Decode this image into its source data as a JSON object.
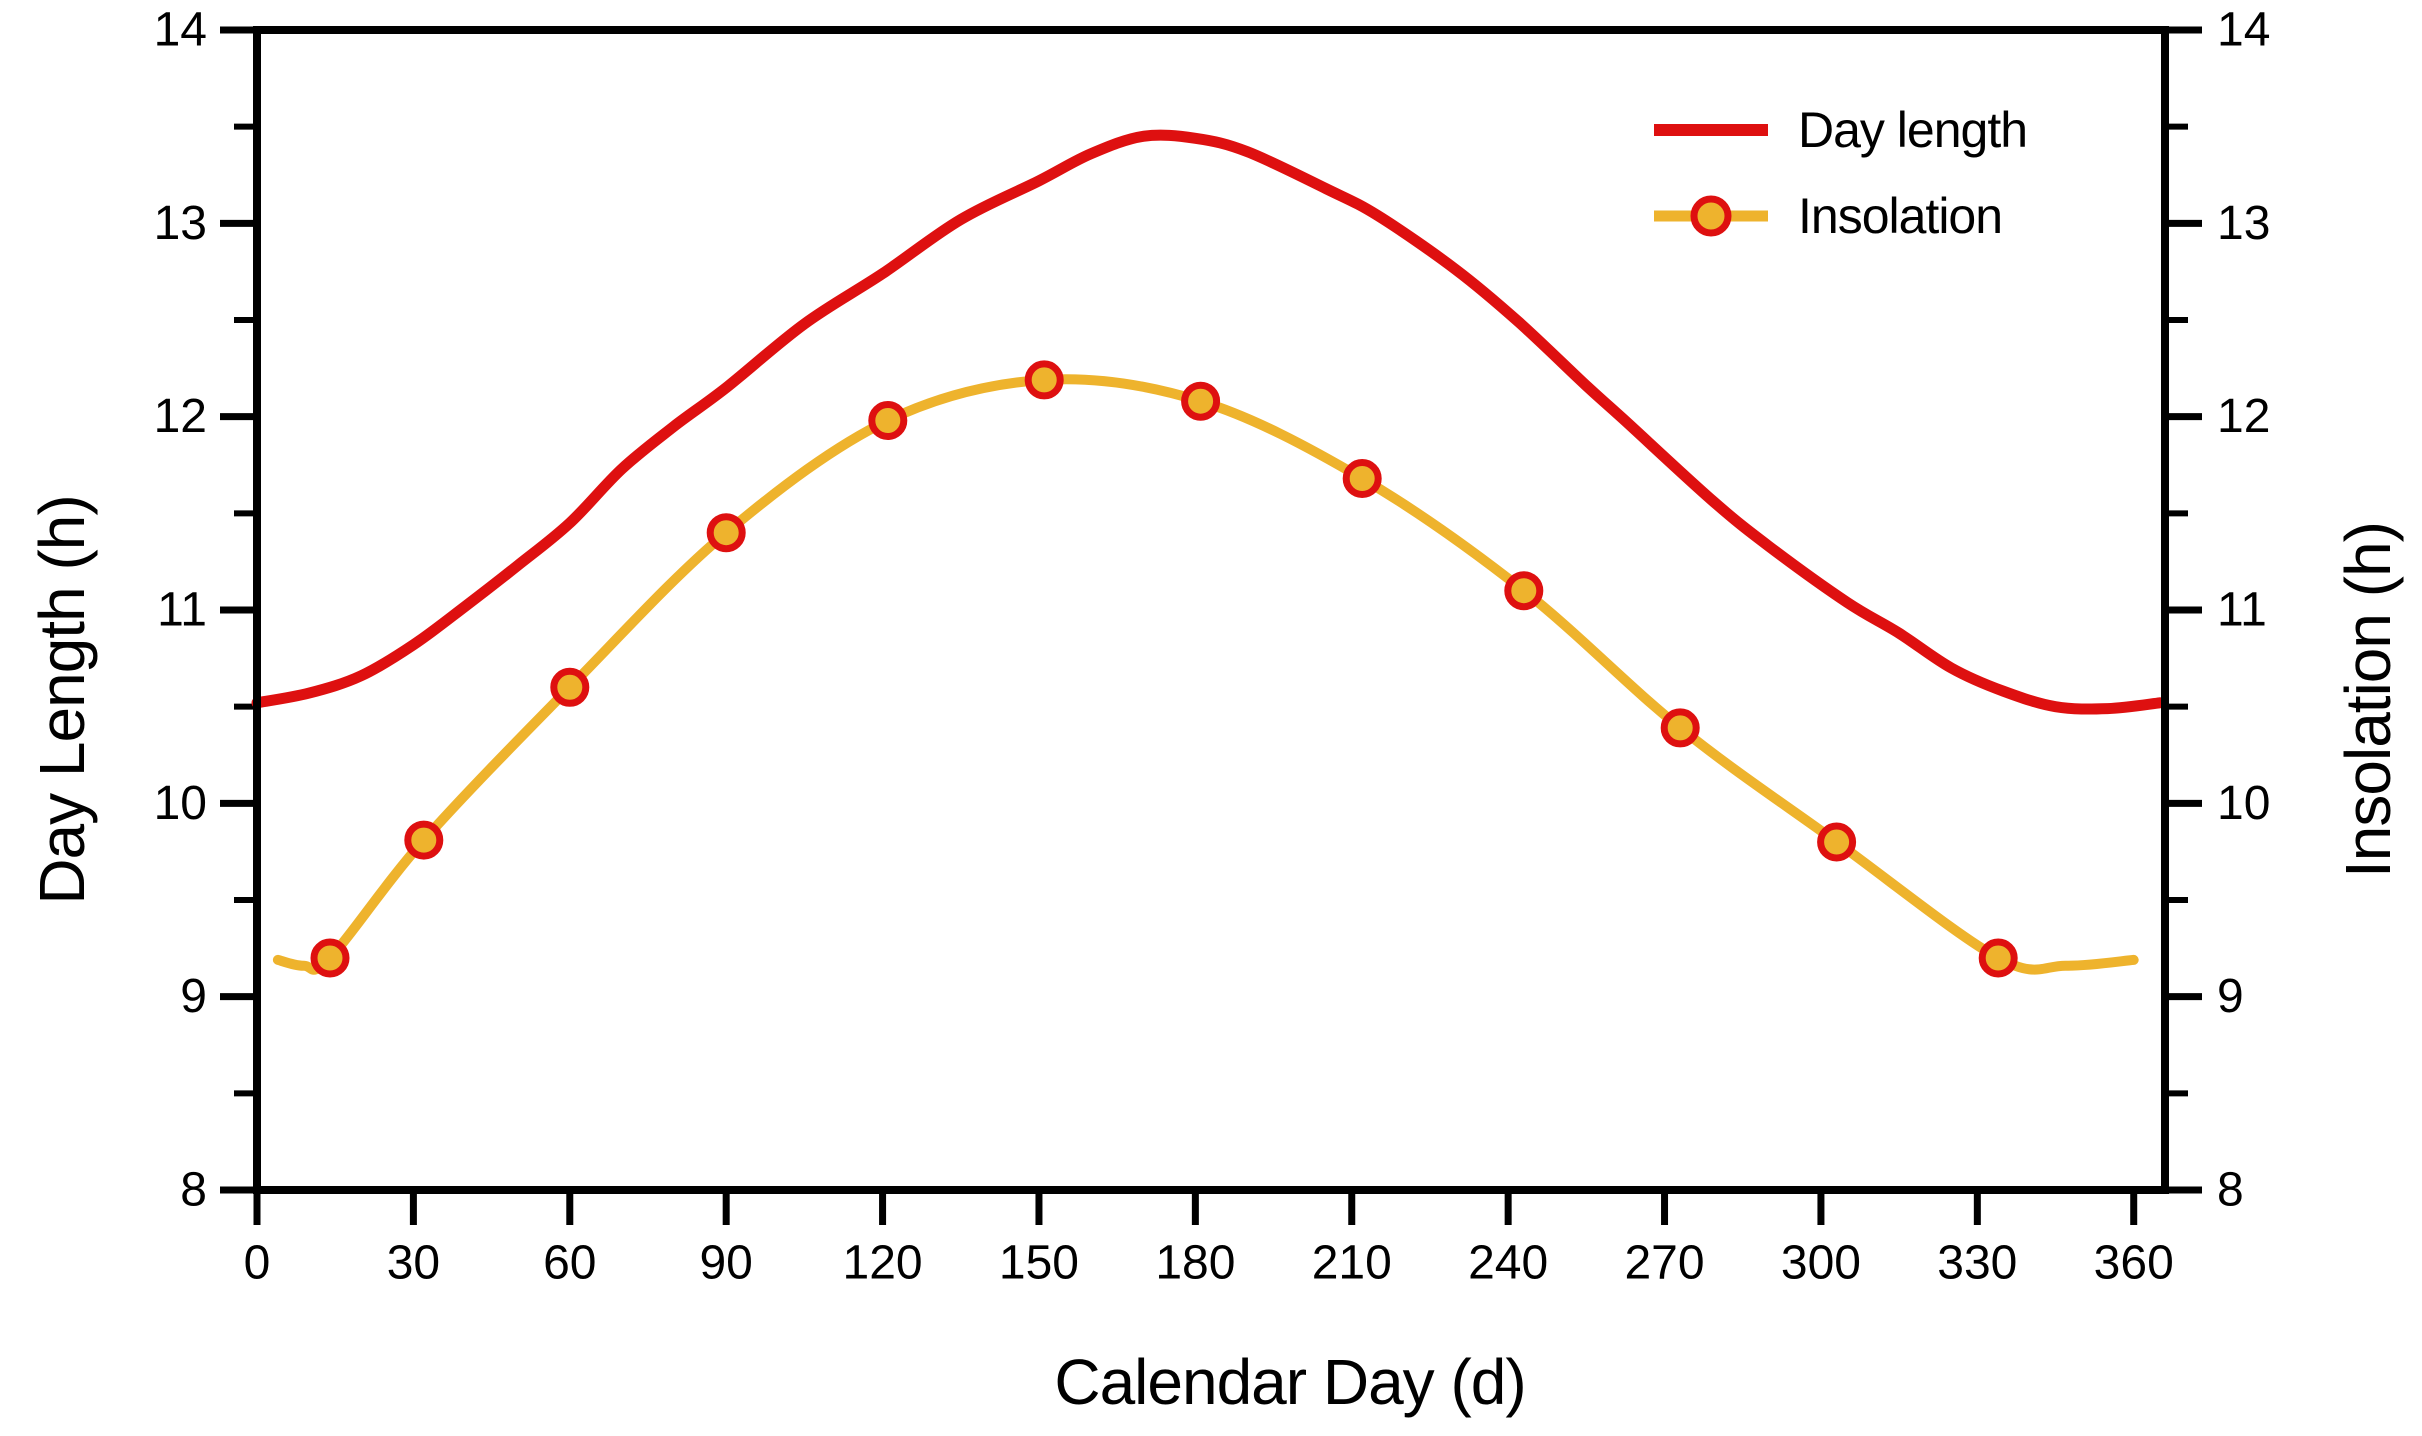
{
  "figure": {
    "background": "#ffffff"
  },
  "colors": {
    "day_length_red": "#de1010",
    "insolation_yellow": "#eeb32d",
    "marker_fill": "#eeb32d",
    "marker_edge": "#de1010",
    "axis_black": "#000000"
  },
  "legend": {
    "items": [
      {
        "label": "Day length",
        "type": "line",
        "color": "#de1010"
      },
      {
        "label": "Insolation",
        "type": "line-marker",
        "line_color": "#eeb32d",
        "marker_fill": "#eeb32d",
        "marker_edge": "#de1010"
      }
    ]
  },
  "chart_data": {
    "type": "line",
    "title": "",
    "xlabel": "Calendar Day (d)",
    "ylabel_left": "Day Length (h)",
    "ylabel_right": "Insolation (h)",
    "xlim": [
      0,
      366
    ],
    "ylim": [
      8,
      14
    ],
    "x_ticks": [
      0,
      30,
      60,
      90,
      120,
      150,
      180,
      210,
      240,
      270,
      300,
      330,
      360
    ],
    "y_ticks": [
      8,
      9,
      10,
      11,
      12,
      13,
      14
    ],
    "y_minor_step": 0.5,
    "grid": false,
    "legend_position": "top-right",
    "series": [
      {
        "name": "Day length",
        "axis": "left",
        "color": "#de1010",
        "line_width": 11,
        "marker": "none",
        "x": [
          0,
          10,
          20,
          30,
          40,
          50,
          60,
          70,
          80,
          90,
          105,
          120,
          135,
          150,
          160,
          170,
          180,
          190,
          205,
          215,
          230,
          242,
          255,
          262,
          279,
          290,
          305,
          315,
          325,
          335,
          345,
          355,
          365
        ],
        "y": [
          10.52,
          10.57,
          10.66,
          10.82,
          11.02,
          11.23,
          11.45,
          11.73,
          11.95,
          12.15,
          12.48,
          12.74,
          13.02,
          13.22,
          13.36,
          13.45,
          13.44,
          13.37,
          13.18,
          13.04,
          12.76,
          12.49,
          12.16,
          11.99,
          11.57,
          11.33,
          11.04,
          10.88,
          10.7,
          10.58,
          10.5,
          10.49,
          10.52
        ]
      },
      {
        "name": "Insolation",
        "axis": "right",
        "color": "#eeb32d",
        "line_width": 10,
        "marker": "circle",
        "marker_radius": 16,
        "marker_edge_width": 7,
        "marker_edge": "#de1010",
        "x": [
          4,
          9,
          14,
          32,
          60,
          90,
          121,
          151,
          181,
          212,
          243,
          273,
          303,
          334,
          347,
          360
        ],
        "y": [
          9.19,
          9.16,
          9.2,
          9.81,
          10.6,
          11.4,
          11.98,
          12.19,
          12.08,
          11.68,
          11.1,
          10.39,
          9.8,
          9.2,
          9.16,
          9.19
        ],
        "marker_x": [
          14,
          32,
          60,
          90,
          121,
          151,
          181,
          212,
          243,
          273,
          303,
          334
        ],
        "marker_y": [
          9.2,
          9.81,
          10.6,
          11.4,
          11.98,
          12.19,
          12.08,
          11.68,
          11.1,
          10.39,
          9.8,
          9.2
        ]
      }
    ]
  }
}
